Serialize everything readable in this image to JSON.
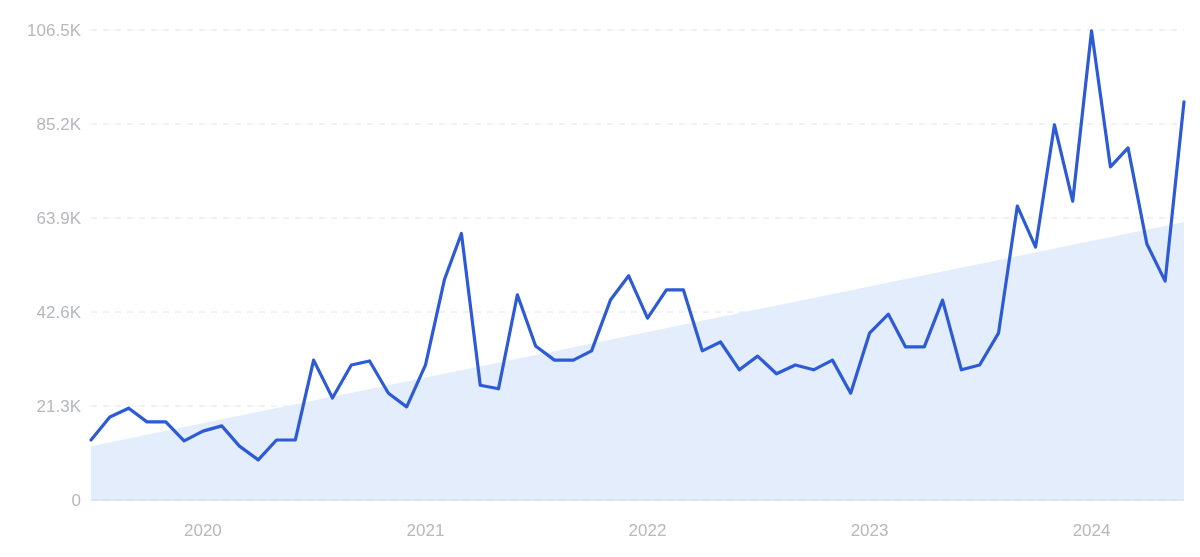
{
  "chart_data": {
    "type": "line",
    "x": [
      "2019-07",
      "2019-08",
      "2019-09",
      "2019-10",
      "2019-11",
      "2019-12",
      "2020-01",
      "2020-02",
      "2020-03",
      "2020-04",
      "2020-05",
      "2020-06",
      "2020-07",
      "2020-08",
      "2020-09",
      "2020-10",
      "2020-11",
      "2020-12",
      "2021-01",
      "2021-02",
      "2021-03",
      "2021-04",
      "2021-05",
      "2021-06",
      "2021-07",
      "2021-08",
      "2021-09",
      "2021-10",
      "2021-11",
      "2021-12",
      "2022-01",
      "2022-02",
      "2022-03",
      "2022-04",
      "2022-05",
      "2022-06",
      "2022-07",
      "2022-08",
      "2022-09",
      "2022-10",
      "2022-11",
      "2022-12",
      "2023-01",
      "2023-02",
      "2023-03",
      "2023-04",
      "2023-05",
      "2023-06",
      "2023-07",
      "2023-08",
      "2023-09",
      "2023-10",
      "2023-11",
      "2023-12",
      "2024-01",
      "2024-02",
      "2024-03",
      "2024-04",
      "2024-05",
      "2024-06"
    ],
    "series": [
      {
        "type": "area",
        "color": "#e3edfb",
        "x": [
          "2019-07",
          "2024-06"
        ],
        "values": [
          12.2,
          63.0
        ]
      },
      {
        "color": "#2d5bd7",
        "values": [
          13.6,
          18.8,
          20.8,
          17.7,
          17.7,
          13.4,
          15.6,
          16.8,
          12.2,
          9.1,
          13.6,
          13.6,
          31.7,
          23.1,
          30.6,
          31.5,
          24.2,
          21.1,
          30.6,
          49.9,
          60.4,
          26.0,
          25.2,
          46.5,
          34.9,
          31.7,
          31.7,
          33.8,
          45.3,
          50.8,
          41.2,
          47.6,
          47.6,
          33.8,
          35.8,
          29.5,
          32.6,
          28.6,
          30.6,
          29.5,
          31.7,
          24.2,
          37.8,
          42.1,
          34.7,
          34.7,
          45.3,
          29.5,
          30.6,
          37.8,
          66.6,
          57.3,
          85.0,
          67.7,
          106.3,
          75.5,
          79.8,
          58.0,
          49.6,
          90.2
        ]
      }
    ],
    "xlim": [
      "2019-07",
      "2024-06"
    ],
    "xticks": [
      {
        "value": "2020-01",
        "label": "2020"
      },
      {
        "value": "2021-01",
        "label": "2021"
      },
      {
        "value": "2022-01",
        "label": "2022"
      },
      {
        "value": "2023-01",
        "label": "2023"
      },
      {
        "value": "2024-01",
        "label": "2024"
      }
    ],
    "ylim": [
      0,
      106.5
    ],
    "yticks": [
      {
        "value": 0,
        "label": "0"
      },
      {
        "value": 21.3,
        "label": "21.3K"
      },
      {
        "value": 42.6,
        "label": "42.6K"
      },
      {
        "value": 63.9,
        "label": "63.9K"
      },
      {
        "value": 85.2,
        "label": "85.2K"
      },
      {
        "value": 106.5,
        "label": "106.5K"
      }
    ],
    "grid": "y",
    "line_style": "solid",
    "marker": "none"
  }
}
